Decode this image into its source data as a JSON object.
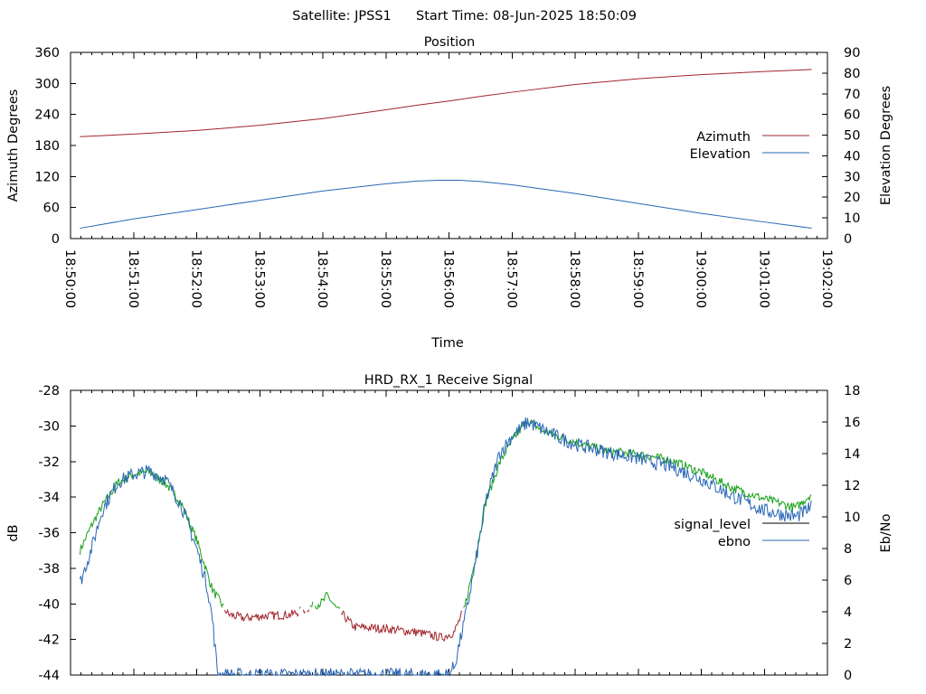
{
  "header": {
    "satellite": "Satellite: JPSS1",
    "start_time": "Start Time: 08-Jun-2025 18:50:09"
  },
  "chart_data": [
    {
      "type": "line",
      "title": "Position",
      "xlabel": "Time",
      "ylabel": "Azimuth Degrees",
      "y2label": "Elevation Degrees",
      "xlim": [
        "18:50:00",
        "19:02:00"
      ],
      "ylim": [
        0,
        360
      ],
      "y2lim": [
        0,
        90
      ],
      "x_ticks": [
        "18:50:00",
        "18:51:00",
        "18:52:00",
        "18:53:00",
        "18:54:00",
        "18:55:00",
        "18:56:00",
        "18:57:00",
        "18:58:00",
        "18:59:00",
        "19:00:00",
        "19:01:00",
        "19:02:00"
      ],
      "y_ticks": [
        0,
        60,
        120,
        180,
        240,
        300,
        360
      ],
      "y2_ticks": [
        0,
        10,
        20,
        30,
        40,
        50,
        60,
        70,
        80,
        90
      ],
      "legend_position": "right",
      "series": [
        {
          "name": "Azimuth",
          "axis": "y",
          "color": "#a0242a",
          "x": [
            "18:50:09",
            "18:51:00",
            "18:52:00",
            "18:53:00",
            "18:54:00",
            "18:55:00",
            "18:55:30",
            "18:56:00",
            "18:56:30",
            "18:57:00",
            "18:58:00",
            "18:59:00",
            "19:00:00",
            "19:01:00",
            "19:01:45"
          ],
          "y": [
            197,
            202,
            209,
            219,
            232,
            249,
            258,
            266,
            275,
            283,
            298,
            309,
            317,
            323,
            327
          ]
        },
        {
          "name": "Elevation",
          "axis": "y2",
          "color": "#2866b5",
          "x": [
            "18:50:09",
            "18:51:00",
            "18:52:00",
            "18:53:00",
            "18:54:00",
            "18:55:00",
            "18:55:30",
            "18:55:50",
            "18:56:10",
            "18:56:30",
            "18:57:00",
            "18:58:00",
            "18:59:00",
            "19:00:00",
            "19:01:00",
            "19:01:45"
          ],
          "y": [
            5,
            9.5,
            14,
            18.5,
            23,
            26.5,
            27.8,
            28.2,
            28.2,
            27.6,
            26,
            21.8,
            17,
            12.2,
            8,
            5
          ]
        }
      ]
    },
    {
      "type": "line",
      "title": "HRD_RX_1 Receive Signal",
      "ylabel": "dB",
      "y2label": "Eb/No",
      "xlim": [
        "18:50:00",
        "19:02:00"
      ],
      "ylim": [
        -44,
        -28
      ],
      "y2lim": [
        0,
        18
      ],
      "y_ticks": [
        -44,
        -42,
        -40,
        -38,
        -36,
        -34,
        -32,
        -30,
        -28
      ],
      "y2_ticks": [
        0,
        2,
        4,
        6,
        8,
        10,
        12,
        14,
        16,
        18
      ],
      "legend_position": "right",
      "series": [
        {
          "name": "signal_level",
          "axis": "y",
          "color": "#1aa01a",
          "low_color": "#a0242a",
          "x": [
            "18:50:09",
            "18:50:20",
            "18:50:30",
            "18:50:45",
            "18:51:00",
            "18:51:15",
            "18:51:30",
            "18:51:45",
            "18:52:00",
            "18:52:15",
            "18:52:30",
            "18:52:45",
            "18:53:00",
            "18:53:30",
            "18:54:00",
            "18:54:04",
            "18:54:12",
            "18:54:30",
            "18:55:00",
            "18:55:30",
            "18:55:53",
            "18:56:05",
            "18:56:15",
            "18:56:25",
            "18:56:35",
            "18:56:48",
            "18:57:00",
            "18:57:15",
            "18:57:30",
            "18:57:45",
            "18:58:00",
            "18:58:30",
            "18:59:00",
            "18:59:30",
            "19:00:00",
            "19:00:30",
            "19:01:00",
            "19:01:30",
            "19:01:45"
          ],
          "y": [
            -37,
            -35.6,
            -34.5,
            -33.2,
            -32.7,
            -32.6,
            -33.2,
            -34.3,
            -36.4,
            -39.2,
            -40.6,
            -40.8,
            -40.7,
            -40.6,
            -39.9,
            -39.5,
            -40.2,
            -41.3,
            -41.4,
            -41.6,
            -41.9,
            -41.6,
            -40.2,
            -37.5,
            -34.3,
            -32.1,
            -30.8,
            -29.7,
            -30.3,
            -30.6,
            -30.9,
            -31.4,
            -31.6,
            -31.9,
            -32.6,
            -33.5,
            -34.1,
            -34.6,
            -33.8
          ]
        },
        {
          "name": "ebno",
          "axis": "y2",
          "color": "#2866b5",
          "x": [
            "18:50:09",
            "18:50:20",
            "18:50:30",
            "18:50:45",
            "18:51:00",
            "18:51:15",
            "18:51:30",
            "18:51:45",
            "18:52:00",
            "18:52:10",
            "18:52:15",
            "18:52:20",
            "18:55:58",
            "18:56:05",
            "18:56:15",
            "18:56:25",
            "18:56:35",
            "18:56:48",
            "18:57:00",
            "18:57:15",
            "18:57:30",
            "18:57:45",
            "18:58:00",
            "18:58:30",
            "18:59:00",
            "18:59:30",
            "19:00:00",
            "19:00:30",
            "19:01:00",
            "19:01:30",
            "19:01:45"
          ],
          "y": [
            5.8,
            8.0,
            10.4,
            12.2,
            12.7,
            12.9,
            12.4,
            10.8,
            8.0,
            5.6,
            3.5,
            0,
            0,
            0.5,
            3.5,
            7.0,
            11.0,
            14.0,
            15.1,
            16.0,
            15.5,
            15.0,
            14.6,
            14.1,
            13.7,
            13.2,
            12.4,
            11.3,
            10.4,
            10.0,
            10.6
          ]
        }
      ]
    }
  ]
}
